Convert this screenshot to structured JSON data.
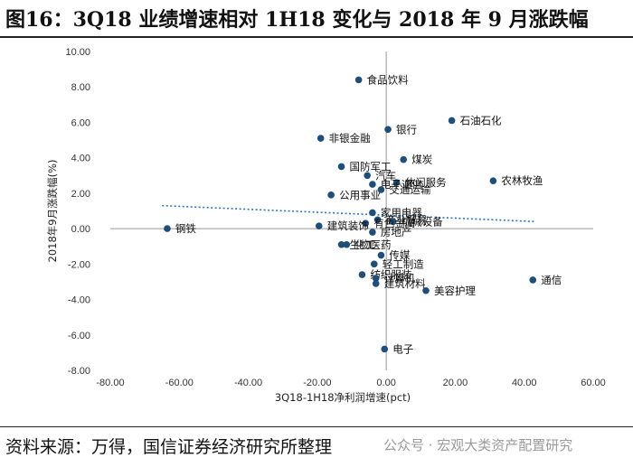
{
  "title": "图16：3Q18 业绩增速相对 1H18 变化与 2018 年 9 月涨跌幅",
  "source": "资料来源：万得，国信证券经济研究所整理",
  "watermark": "公众号 · 宏观大类资产配置研究",
  "colors": {
    "point": "#1f4e79",
    "trend": "#2e75b6",
    "axis": "#999999"
  },
  "chart_data": {
    "type": "scatter",
    "xlabel": "3Q18-1H18净利润增速(pct)",
    "ylabel": "2018年9月涨跌幅(%)",
    "xlim": [
      -80,
      60
    ],
    "ylim": [
      -8,
      10
    ],
    "xticks": [
      "-80.00",
      "-60.00",
      "-40.00",
      "-20.00",
      "0.00",
      "20.00",
      "40.00",
      "60.00"
    ],
    "yticks": [
      "10.00",
      "8.00",
      "6.00",
      "4.00",
      "2.00",
      "0.00",
      "-2.00",
      "-4.00",
      "-6.00",
      "-8.00"
    ],
    "trendline": {
      "style": "dotted",
      "x": [
        -65,
        43
      ],
      "y": [
        1.3,
        0.4
      ]
    },
    "points": [
      {
        "name": "食品饮料",
        "x": -8.0,
        "y": 8.4
      },
      {
        "name": "石油石化",
        "x": 19.0,
        "y": 6.1
      },
      {
        "name": "银行",
        "x": 0.5,
        "y": 5.6
      },
      {
        "name": "非银金融",
        "x": -19.0,
        "y": 5.1
      },
      {
        "name": "煤炭",
        "x": 5.0,
        "y": 3.9
      },
      {
        "name": "国防军工",
        "x": -13.0,
        "y": 3.5
      },
      {
        "name": "汽车",
        "x": -5.5,
        "y": 3.0
      },
      {
        "name": "农林牧渔",
        "x": 31.0,
        "y": 2.7
      },
      {
        "name": "休闲服务",
        "x": 3.0,
        "y": 2.6
      },
      {
        "name": "电子通信",
        "x": -4.0,
        "y": 2.5
      },
      {
        "name": "交通运输",
        "x": -1.5,
        "y": 2.2
      },
      {
        "name": "公用事业",
        "x": -16.0,
        "y": 1.9
      },
      {
        "name": "家用电器",
        "x": -4.0,
        "y": 0.9
      },
      {
        "name": "商业贸易",
        "x": -2.5,
        "y": 0.5
      },
      {
        "name": "机械设备",
        "x": 2.0,
        "y": 0.4
      },
      {
        "name": "有色金属",
        "x": -6.0,
        "y": 0.3
      },
      {
        "name": "建筑装饰",
        "x": -19.5,
        "y": 0.15
      },
      {
        "name": "房地产",
        "x": -4.0,
        "y": -0.2
      },
      {
        "name": "钢铁",
        "x": -63.5,
        "y": 0.0
      },
      {
        "name": "化工",
        "x": -11.5,
        "y": -0.9
      },
      {
        "name": "生物医药",
        "x": -13.0,
        "y": -0.9
      },
      {
        "name": "传媒",
        "x": -1.5,
        "y": -1.5
      },
      {
        "name": "轻工制造",
        "x": -3.5,
        "y": -2.0
      },
      {
        "name": "纺织服装",
        "x": -7.0,
        "y": -2.6
      },
      {
        "name": "计算机",
        "x": -3.0,
        "y": -2.8
      },
      {
        "name": "建筑材料",
        "x": -3.0,
        "y": -3.1
      },
      {
        "name": "美容护理",
        "x": 11.5,
        "y": -3.5
      },
      {
        "name": "通信",
        "x": 42.5,
        "y": -2.9
      },
      {
        "name": "电子",
        "x": -0.5,
        "y": -6.8
      }
    ]
  }
}
